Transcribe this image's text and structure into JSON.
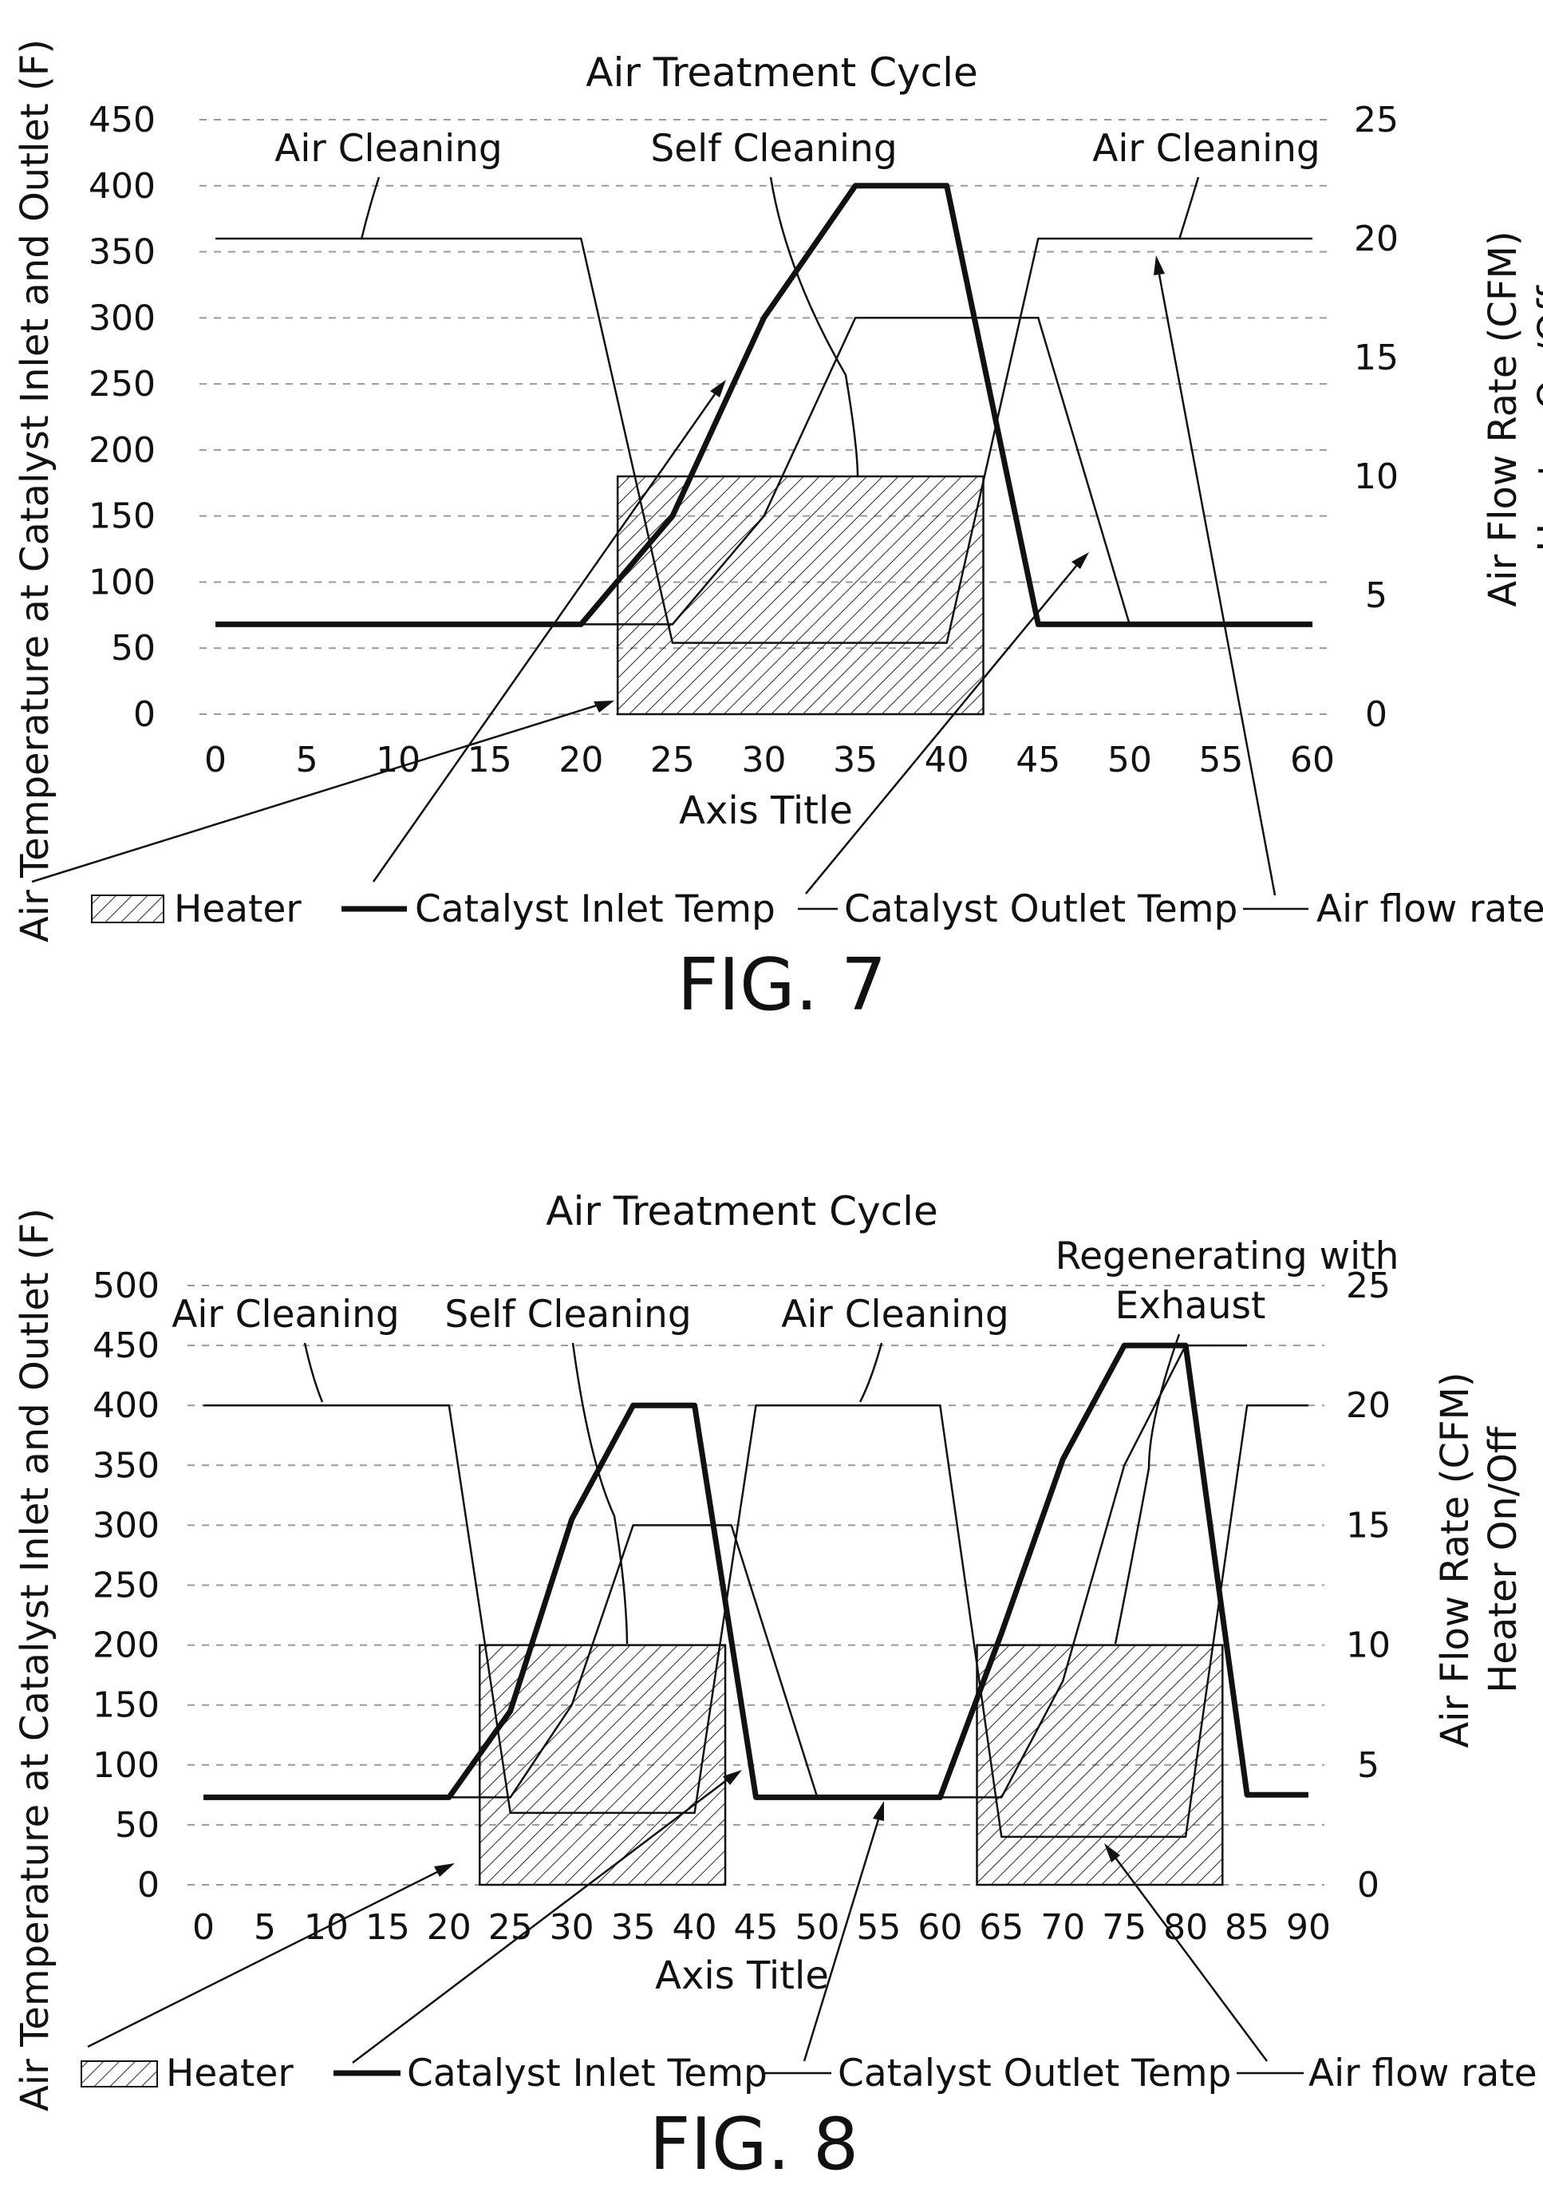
{
  "figures": [
    {
      "fig_label": "FIG. 7",
      "legend": [
        {
          "key": "heater",
          "label": "Heater"
        },
        {
          "key": "inlet",
          "label": "Catalyst Inlet Temp"
        },
        {
          "key": "outlet",
          "label": "Catalyst Outlet Temp"
        },
        {
          "key": "airflow",
          "label": "Air flow rate"
        }
      ],
      "annotations": [
        "Air Cleaning",
        "Self Cleaning",
        "Air Cleaning"
      ]
    },
    {
      "fig_label": "FIG. 8",
      "legend": [
        {
          "key": "heater",
          "label": "Heater"
        },
        {
          "key": "inlet",
          "label": "Catalyst Inlet Temp"
        },
        {
          "key": "outlet",
          "label": "Catalyst Outlet Temp"
        },
        {
          "key": "airflow",
          "label": "Air flow rate"
        }
      ],
      "annotations": [
        "Air Cleaning",
        "Self Cleaning",
        "Air Cleaning",
        "Regenerating with",
        "Exhaust"
      ]
    }
  ],
  "chart_data": [
    {
      "type": "line",
      "title": "Air Treatment Cycle",
      "xlabel": "Axis Title",
      "ylabel": "Air Temperature at Catalyst Inlet and Outlet (F)",
      "y2label": [
        "Air Flow Rate (CFM)",
        "Heater On/Off"
      ],
      "xlim": [
        0,
        60
      ],
      "ylim": [
        0,
        450
      ],
      "y2lim": [
        0,
        25
      ],
      "x_ticks": [
        0,
        5,
        10,
        15,
        20,
        25,
        30,
        35,
        40,
        45,
        50,
        55,
        60
      ],
      "y_ticks": [
        0,
        50,
        100,
        150,
        200,
        250,
        300,
        350,
        400,
        450
      ],
      "y2_ticks": [
        0,
        5,
        10,
        15,
        20,
        25
      ],
      "grid": "horizontal dashed",
      "legend_position": "bottom",
      "series": [
        {
          "name": "Heater",
          "type": "area",
          "axis": "right",
          "points": [
            [
              22,
              0
            ],
            [
              22,
              10
            ],
            [
              42,
              10
            ],
            [
              42,
              0
            ]
          ]
        },
        {
          "name": "Catalyst Inlet Temp",
          "axis": "left",
          "points": [
            [
              0,
              68
            ],
            [
              20,
              68
            ],
            [
              25,
              150
            ],
            [
              30,
              300
            ],
            [
              35,
              400
            ],
            [
              40,
              400
            ],
            [
              45,
              68
            ],
            [
              60,
              68
            ]
          ]
        },
        {
          "name": "Catalyst Outlet Temp",
          "axis": "left",
          "points": [
            [
              0,
              68
            ],
            [
              25,
              68
            ],
            [
              30,
              150
            ],
            [
              35,
              300
            ],
            [
              45,
              300
            ],
            [
              50,
              68
            ],
            [
              60,
              68
            ]
          ]
        },
        {
          "name": "Air flow rate",
          "axis": "right",
          "points": [
            [
              0,
              20
            ],
            [
              20,
              20
            ],
            [
              25,
              3
            ],
            [
              40,
              3
            ],
            [
              45,
              20
            ],
            [
              60,
              20
            ]
          ]
        }
      ]
    },
    {
      "type": "line",
      "title": "Air Treatment Cycle",
      "xlabel": "Axis Title",
      "ylabel": "Air Temperature at Catalyst Inlet and Outlet (F)",
      "y2label": [
        "Air Flow Rate (CFM)",
        "Heater On/Off"
      ],
      "xlim": [
        0,
        90
      ],
      "ylim": [
        0,
        500
      ],
      "y2lim": [
        0,
        25
      ],
      "x_ticks": [
        0,
        5,
        10,
        15,
        20,
        25,
        30,
        35,
        40,
        45,
        50,
        55,
        60,
        65,
        70,
        75,
        80,
        85,
        90
      ],
      "y_ticks": [
        0,
        50,
        100,
        150,
        200,
        250,
        300,
        350,
        400,
        450,
        500
      ],
      "y2_ticks": [
        0,
        5,
        10,
        15,
        20,
        25
      ],
      "grid": "horizontal dashed",
      "legend_position": "bottom",
      "series": [
        {
          "name": "Heater",
          "type": "area",
          "axis": "right",
          "segments": [
            [
              [
                22.5,
                0
              ],
              [
                22.5,
                10
              ],
              [
                42.5,
                10
              ],
              [
                42.5,
                0
              ]
            ],
            [
              [
                63,
                0
              ],
              [
                63,
                10
              ],
              [
                83,
                10
              ],
              [
                83,
                0
              ]
            ]
          ]
        },
        {
          "name": "Catalyst Inlet Temp",
          "axis": "left",
          "points": [
            [
              0,
              73
            ],
            [
              20,
              73
            ],
            [
              25,
              145
            ],
            [
              30,
              305
            ],
            [
              35,
              400
            ],
            [
              40,
              400
            ],
            [
              45,
              73
            ],
            [
              60,
              73
            ],
            [
              65,
              210
            ],
            [
              70,
              355
            ],
            [
              75,
              450
            ],
            [
              80,
              450
            ],
            [
              85,
              75
            ],
            [
              90,
              75
            ]
          ]
        },
        {
          "name": "Catalyst Outlet Temp",
          "axis": "left",
          "points": [
            [
              0,
              73
            ],
            [
              25,
              73
            ],
            [
              30,
              150
            ],
            [
              35,
              300
            ],
            [
              40,
              300
            ],
            [
              43,
              300
            ],
            [
              50,
              73
            ],
            [
              65,
              73
            ],
            [
              70,
              170
            ],
            [
              75,
              350
            ],
            [
              80,
              450
            ],
            [
              85,
              450
            ]
          ]
        },
        {
          "name": "Air flow rate",
          "axis": "right",
          "points": [
            [
              0,
              20
            ],
            [
              20,
              20
            ],
            [
              25,
              3
            ],
            [
              40,
              3
            ],
            [
              45,
              20
            ],
            [
              60,
              20
            ],
            [
              65,
              2
            ],
            [
              80,
              2
            ],
            [
              85,
              20
            ],
            [
              90,
              20
            ]
          ]
        }
      ]
    }
  ]
}
